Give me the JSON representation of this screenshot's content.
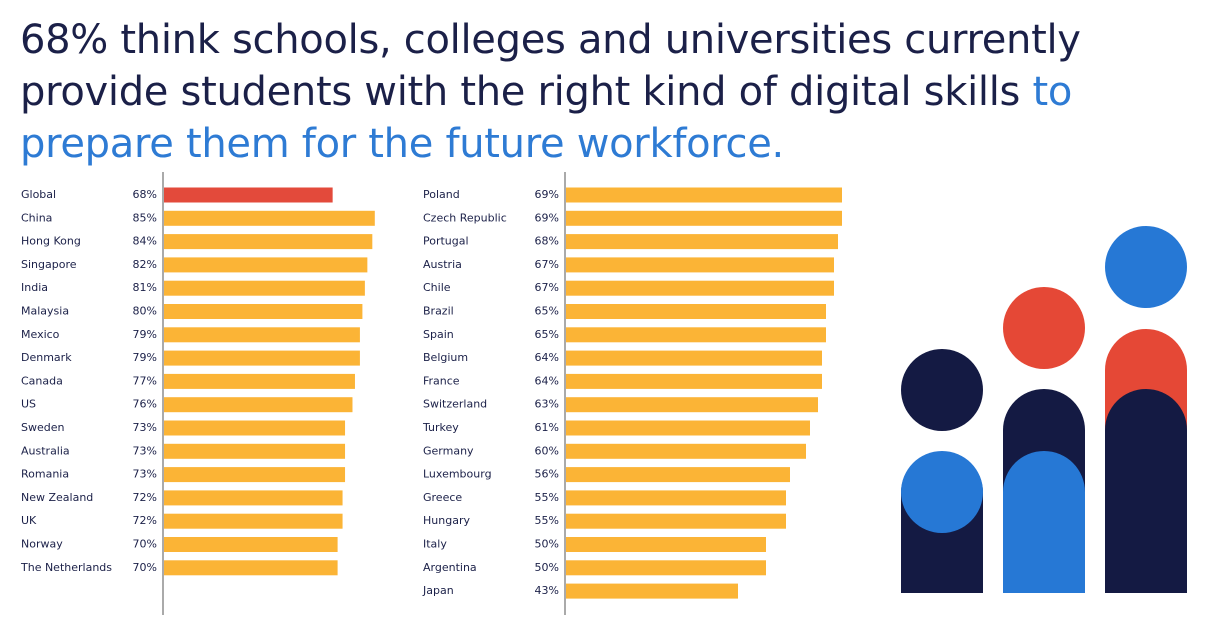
{
  "headline": {
    "part1": "68% think schools, colleges and universities currently provide students with the right kind of digital skills",
    "part2": "to prepare them for the future workforce."
  },
  "colors": {
    "headline": "#1b2048",
    "highlight": "#2e7bd4",
    "bar": "#fbb436",
    "bar_highlight": "#e34a3b",
    "axis": "#555555",
    "illustration_navy": "#141a43",
    "illustration_blue": "#2678d5",
    "illustration_red": "#e54836"
  },
  "chart_data": [
    {
      "type": "bar",
      "orientation": "horizontal",
      "value_suffix": "%",
      "xlim": [
        0,
        100
      ],
      "highlight_category": "Global",
      "categories": [
        "Global",
        "China",
        "Hong Kong",
        "Singapore",
        "India",
        "Malaysia",
        "Mexico",
        "Denmark",
        "Canada",
        "US",
        "Sweden",
        "Australia",
        "Romania",
        "New Zealand",
        "UK",
        "Norway",
        "The Netherlands"
      ],
      "values": [
        68,
        85,
        84,
        82,
        81,
        80,
        79,
        79,
        77,
        76,
        73,
        73,
        73,
        72,
        72,
        70,
        70
      ]
    },
    {
      "type": "bar",
      "orientation": "horizontal",
      "value_suffix": "%",
      "xlim": [
        0,
        100
      ],
      "categories": [
        "Poland",
        "Czech Republic",
        "Portugal",
        "Austria",
        "Chile",
        "Brazil",
        "Spain",
        "Belgium",
        "France",
        "Switzerland",
        "Turkey",
        "Germany",
        "Luxembourg",
        "Greece",
        "Hungary",
        "Italy",
        "Argentina",
        "Japan"
      ],
      "values": [
        69,
        69,
        68,
        67,
        67,
        65,
        65,
        64,
        64,
        63,
        61,
        60,
        56,
        55,
        55,
        50,
        50,
        43
      ]
    }
  ],
  "illustration": {
    "icon": "people-group-icon"
  }
}
